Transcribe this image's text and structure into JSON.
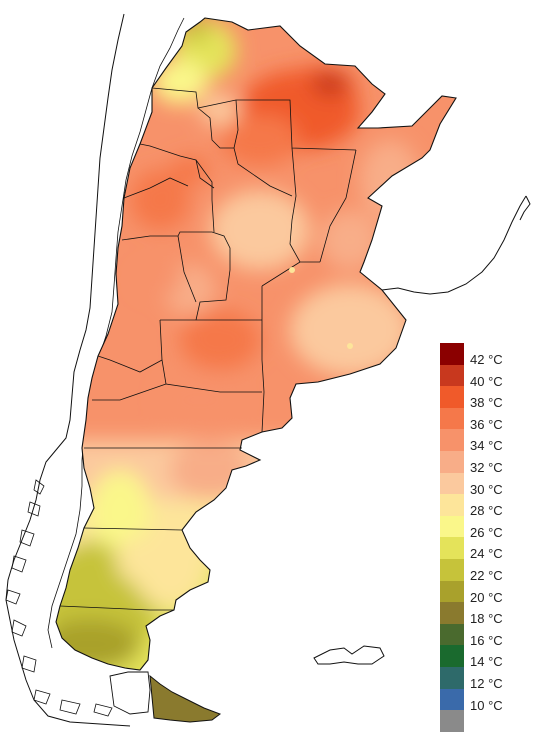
{
  "map": {
    "country": "Argentina",
    "variable": "temperature",
    "unit": "°C"
  },
  "legend": {
    "items": [
      {
        "label": "42 °C",
        "color": "#8b0000"
      },
      {
        "label": "40 °C",
        "color": "#c8381e"
      },
      {
        "label": "38 °C",
        "color": "#f05a2a"
      },
      {
        "label": "36 °C",
        "color": "#f5784a"
      },
      {
        "label": "34 °C",
        "color": "#f7926a"
      },
      {
        "label": "32 °C",
        "color": "#f8ad88"
      },
      {
        "label": "30 °C",
        "color": "#fbc99e"
      },
      {
        "label": "28 °C",
        "color": "#fde59a"
      },
      {
        "label": "26 °C",
        "color": "#faf78a"
      },
      {
        "label": "24 °C",
        "color": "#e4e35a"
      },
      {
        "label": "22 °C",
        "color": "#c6c33a"
      },
      {
        "label": "20 °C",
        "color": "#a9a12c"
      },
      {
        "label": "18 °C",
        "color": "#8a7a2e"
      },
      {
        "label": "16 °C",
        "color": "#4a6a2e"
      },
      {
        "label": "14 °C",
        "color": "#1a6a2e"
      },
      {
        "label": "12 °C",
        "color": "#2e6a6a"
      },
      {
        "label": "10 °C",
        "color": "#3a6aaa"
      },
      {
        "label": "",
        "color": "#8a8a8a"
      }
    ]
  }
}
